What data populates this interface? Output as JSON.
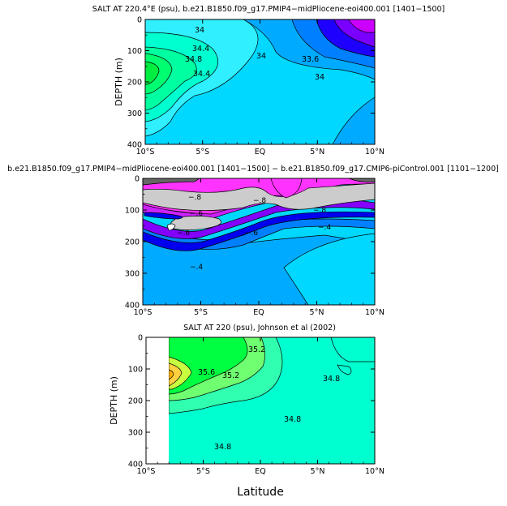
{
  "colors": {
    "sal_33_8": "#1e00ff",
    "sal_34": "#0096ff",
    "sal_34_2": "#00bfff",
    "sal_34_4": "#00dfff",
    "sal_34_6": "#40ffff",
    "sal_34_8": "#00ffc0",
    "sal_35": "#00ff80",
    "sal_high": "#00ee40",
    "sal_violet": "#7a00ff",
    "sal_magenta": "#cc00ff",
    "diff_neg_deep": "#0000ee",
    "diff_neg": "#8400ff",
    "diff_neg_mid": "#cc22ff",
    "diff_neg_light": "#ff33ff",
    "diff_zero": "#cccccc",
    "diff_pos": "#666666",
    "obs_35": "#00ffd0",
    "obs_35_2": "#7fff60",
    "obs_35_4": "#c8ff40",
    "obs_35_6": "#ffd040",
    "obs_high": "#ffb000"
  },
  "chart_data": [
    {
      "id": "model",
      "type": "heatmap",
      "title": "SALT AT 220.4°E (psu), b.e21.B1850.f09_g17.PMIP4−midPliocene-eoi400.001 [1401−1500]",
      "xlabel": "",
      "ylabel": "DEPTH (m)",
      "x_ticks": [
        "10°S",
        "5°S",
        "EQ",
        "5°N",
        "10°N"
      ],
      "y_ticks": [
        "0",
        "100",
        "200",
        "300",
        "400"
      ],
      "xlim": [
        -10,
        10
      ],
      "ylim": [
        400,
        0
      ],
      "contour_labels": [
        "34",
        "34.4",
        "34.8",
        "34.4",
        "34",
        "33.6",
        "34"
      ]
    },
    {
      "id": "diff",
      "type": "heatmap",
      "title": "b.e21.B1850.f09_g17.PMIP4−midPliocene-eoi400.001 [1401−1500] − b.e21.B1850.f09_g17.CMIP6-piControl.001 [1101−1200]",
      "xlabel": "",
      "ylabel": "",
      "x_ticks": [
        "10°S",
        "5°S",
        "EQ",
        "5°N",
        "10°N"
      ],
      "y_ticks": [
        "0",
        "100",
        "200",
        "300",
        "400"
      ],
      "xlim": [
        -10,
        10
      ],
      "ylim": [
        400,
        0
      ],
      "contour_labels": [
        "−.8",
        "−.6",
        "−.6",
        "−.8",
        "−.6",
        "−.8",
        "−.4",
        "−.4"
      ]
    },
    {
      "id": "obs",
      "type": "heatmap",
      "title": "SALT AT 220 (psu), Johnson et al (2002)",
      "xlabel": "Latitude",
      "ylabel": "DEPTH (m)",
      "x_ticks": [
        "10°S",
        "5°S",
        "EQ",
        "5°N",
        "10°N"
      ],
      "y_ticks": [
        "0",
        "100",
        "200",
        "300",
        "400"
      ],
      "xlim": [
        -10,
        10
      ],
      "ylim": [
        400,
        0
      ],
      "data_xlim": [
        -8,
        10
      ],
      "contour_labels": [
        "35.2",
        "35.6",
        "35.2",
        "34.8",
        "34.8",
        "34.8"
      ]
    }
  ]
}
